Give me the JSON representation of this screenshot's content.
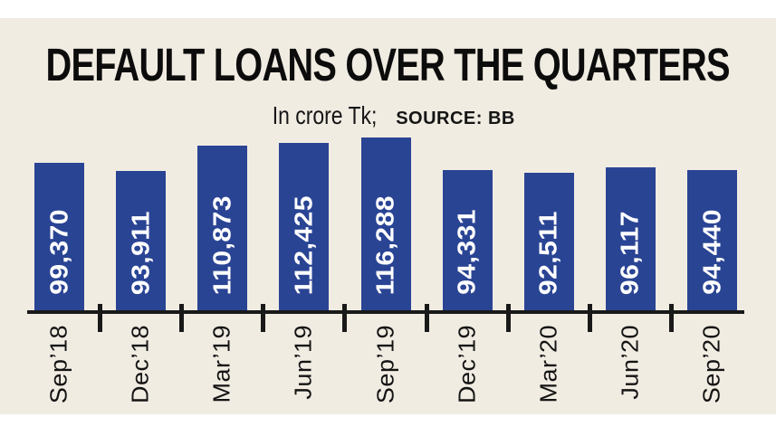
{
  "page": {
    "background_color": "#ffffff",
    "panel_background_color": "#f1ece2"
  },
  "chart_data": {
    "type": "bar",
    "title": "DEFAULT LOANS OVER THE QUARTERS",
    "subtitle_units": "In crore Tk;",
    "subtitle_source": "SOURCE: BB",
    "categories": [
      "Sep’18",
      "Dec’18",
      "Mar’19",
      "Jun’19",
      "Sep’19",
      "Dec’19",
      "Mar’20",
      "Jun’20",
      "Sep’20"
    ],
    "values": [
      99370,
      93911,
      110873,
      112425,
      116288,
      94331,
      92511,
      96117,
      94440
    ],
    "value_labels": [
      "99,370",
      "93,911",
      "110,873",
      "112,425",
      "116,288",
      "94,331",
      "92,511",
      "96,117",
      "94,440"
    ],
    "ylim": [
      0,
      116288
    ],
    "xlabel": "",
    "ylabel": "",
    "grid": false,
    "legend": false,
    "orientation": "vertical",
    "value_label_position": "inside-bottom-rotated-90",
    "category_label_rotation": 90,
    "bar_color": "#2a4494",
    "value_text_color": "#ffffff",
    "axis_color": "#191919",
    "label_text_color": "#141414",
    "title_color": "#0c0c0c"
  }
}
